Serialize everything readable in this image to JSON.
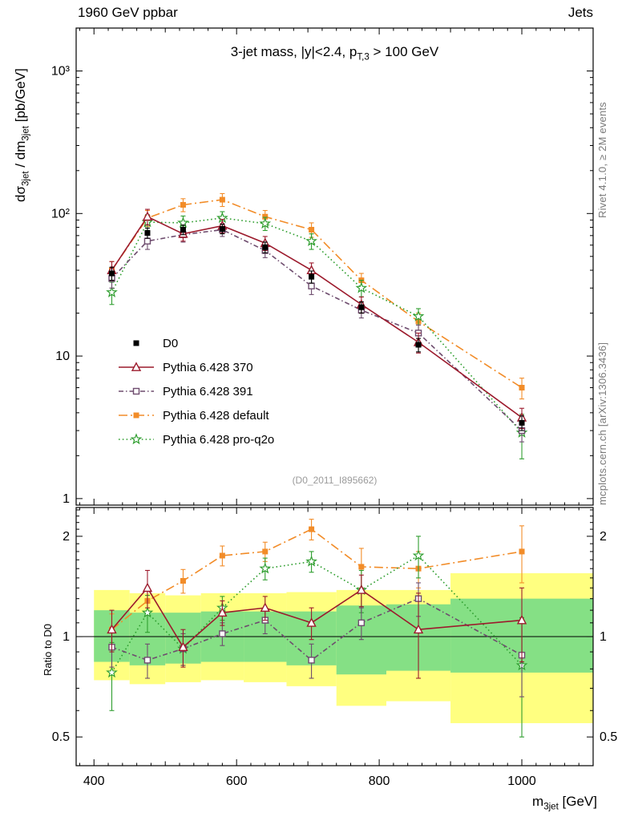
{
  "header": {
    "left": "1960 GeV ppbar",
    "right": "Jets"
  },
  "side_notes": {
    "top": "Rivet 4.1.0, ≥ 2M events",
    "bottom": "mcplots.cern.ch [arXiv:1306.3436]"
  },
  "watermark": "(D0_2011_I895662)",
  "titles": {
    "plot": {
      "pre": "3-jet mass, |y|<2.4, p",
      "sub": "T,3",
      "post": " > 100 GeV"
    },
    "y_main": {
      "p1": "dσ",
      "s1": "3jet",
      "p2": " / dm",
      "s2": "3jet",
      "p3": " [pb/GeV]"
    },
    "y_ratio": "Ratio to D0",
    "x": {
      "pre": "m",
      "sub": "3jet",
      "post": " [GeV]"
    }
  },
  "chart_data": {
    "type": "line",
    "title": "3-jet mass, |y|<2.4, pT,3 > 100 GeV",
    "x_axis_label": "m3jet [GeV]",
    "y_axis_label_main": "dsigma_3jet / dm_3jet [pb/GeV]",
    "y_axis_label_ratio": "Ratio to D0",
    "log_y": true,
    "x_range": [
      375,
      1100
    ],
    "y_range_main": [
      0.9,
      2000
    ],
    "y_range_ratio": [
      0.41,
      2.44
    ],
    "x_ticks": [
      {
        "v": 400,
        "label": "400"
      },
      {
        "v": 600,
        "label": "600"
      },
      {
        "v": 800,
        "label": "800"
      },
      {
        "v": 1000,
        "label": "1000"
      }
    ],
    "y_ticks_main": [
      {
        "v": 1,
        "label": "1"
      },
      {
        "v": 10,
        "label": "10"
      },
      {
        "v": 100,
        "label": "10²"
      },
      {
        "v": 1000,
        "label": "10³"
      }
    ],
    "y_ticks_ratio": [
      {
        "v": 0.5,
        "label": "0.5"
      },
      {
        "v": 1,
        "label": "1"
      },
      {
        "v": 2,
        "label": "2"
      }
    ],
    "x": [
      425,
      475,
      525,
      580,
      640,
      705,
      775,
      855,
      1000
    ],
    "bin_edges": [
      400,
      450,
      500,
      550,
      610,
      670,
      740,
      810,
      900,
      1100
    ],
    "ratio_reference": 1,
    "series": [
      {
        "id": "d0",
        "label": "D0",
        "color": "#000000",
        "marker": "square-filled",
        "line": "none",
        "values": [
          38,
          73,
          77,
          78,
          58,
          36,
          22,
          12,
          3.4
        ],
        "errors": [
          4,
          6,
          6,
          6,
          5,
          3.5,
          2,
          1.3,
          0.4
        ],
        "ratio": null,
        "ratio_errors": null
      },
      {
        "id": "pythia-370",
        "label": "Pythia 6.428 370",
        "color": "#9c1a2c",
        "marker": "triangle-open",
        "line": "solid",
        "values": [
          40,
          95,
          72,
          82,
          62,
          40,
          23,
          12.5,
          3.7
        ],
        "errors": [
          6,
          12,
          8,
          9,
          7,
          5,
          3,
          2,
          0.6
        ],
        "ratio": [
          1.05,
          1.4,
          0.93,
          1.18,
          1.22,
          1.1,
          1.38,
          1.05,
          1.12
        ],
        "ratio_errors": [
          0.15,
          0.18,
          0.12,
          0.1,
          0.1,
          0.12,
          0.15,
          0.3,
          0.28
        ]
      },
      {
        "id": "pythia-391",
        "label": "Pythia 6.428 391",
        "color": "#6e4c6e",
        "marker": "square-open",
        "line": "dashdot",
        "values": [
          35,
          64,
          71,
          77,
          55,
          31,
          21,
          14.5,
          3.0
        ],
        "errors": [
          5,
          8,
          8,
          8,
          6,
          4,
          2.5,
          2,
          0.5
        ],
        "ratio": [
          0.93,
          0.85,
          0.92,
          1.02,
          1.12,
          0.85,
          1.1,
          1.3,
          0.88
        ],
        "ratio_errors": [
          0.12,
          0.1,
          0.1,
          0.08,
          0.1,
          0.1,
          0.12,
          0.15,
          0.22
        ]
      },
      {
        "id": "pythia-default",
        "label": "Pythia 6.428 default",
        "color": "#f28c28",
        "marker": "square-filled",
        "line": "dashdot-long",
        "values": [
          40,
          93,
          115,
          125,
          95,
          77,
          34,
          17.5,
          6.0
        ],
        "errors": [
          6,
          12,
          12,
          13,
          10,
          9,
          4,
          2.5,
          1.0
        ],
        "ratio": [
          1.05,
          1.28,
          1.47,
          1.75,
          1.8,
          2.1,
          1.62,
          1.6,
          1.8
        ],
        "ratio_errors": [
          0.12,
          0.12,
          0.12,
          0.12,
          0.12,
          0.15,
          0.22,
          0.2,
          0.35
        ]
      },
      {
        "id": "pythia-pro-q2o",
        "label": "Pythia 6.428 pro-q2o",
        "color": "#2f9e2f",
        "marker": "star-open",
        "line": "dotted",
        "values": [
          28,
          87,
          86,
          93,
          85,
          64,
          30,
          19,
          2.9
        ],
        "errors": [
          5,
          11,
          10,
          10,
          9,
          8,
          4,
          2.5,
          1.0
        ],
        "ratio": [
          0.78,
          1.18,
          0.92,
          1.22,
          1.6,
          1.68,
          1.38,
          1.75,
          0.82
        ],
        "ratio_errors": [
          0.18,
          0.15,
          0.1,
          0.1,
          0.12,
          0.12,
          0.2,
          0.25,
          0.32
        ]
      }
    ],
    "bands": {
      "outer_color": "#ffff80",
      "inner_color": "#85e085",
      "outer": [
        [
          0.74,
          1.38
        ],
        [
          0.72,
          1.35
        ],
        [
          0.73,
          1.33
        ],
        [
          0.74,
          1.35
        ],
        [
          0.73,
          1.35
        ],
        [
          0.71,
          1.36
        ],
        [
          0.62,
          1.38
        ],
        [
          0.64,
          1.38
        ],
        [
          0.55,
          1.55
        ]
      ],
      "inner": [
        [
          0.84,
          1.2
        ],
        [
          0.82,
          1.18
        ],
        [
          0.83,
          1.18
        ],
        [
          0.84,
          1.19
        ],
        [
          0.84,
          1.19
        ],
        [
          0.82,
          1.19
        ],
        [
          0.77,
          1.24
        ],
        [
          0.79,
          1.25
        ],
        [
          0.78,
          1.3
        ]
      ]
    }
  }
}
